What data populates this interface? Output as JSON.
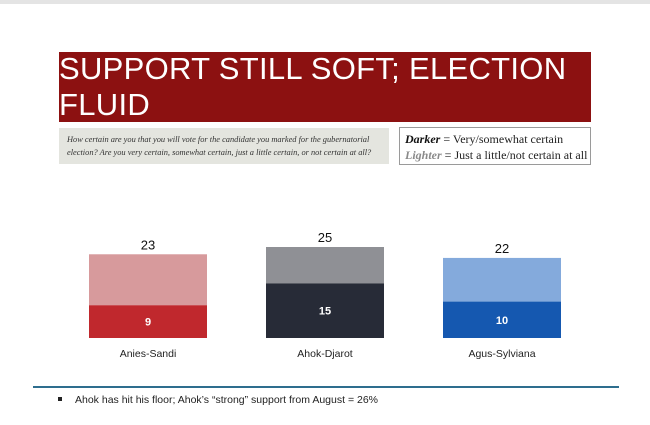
{
  "title": "SUPPORT STILL SOFT; ELECTION FLUID",
  "question": "How certain are you that you will vote for the candidate you marked for the gubernatorial election? Are you very certain, somewhat certain, just a little certain, or not certain at all?",
  "legend": {
    "dark_key": "Darker",
    "dark_text": " = Very/somewhat certain",
    "light_key": "Lighter",
    "light_text": " = Just a little/not certain at all"
  },
  "chart_data": {
    "type": "bar",
    "stacked": true,
    "categories": [
      "Anies-Sandi",
      "Ahok-Djarot",
      "Agus-Sylviana"
    ],
    "totals": [
      23,
      25,
      22
    ],
    "certain_values": [
      9,
      15,
      10
    ],
    "uncertain_values": [
      14,
      10,
      12
    ],
    "colors": {
      "certain": [
        "#c0282d",
        "#272b37",
        "#1558b0"
      ],
      "uncertain": [
        "#d79a9c",
        "#8f9095",
        "#84aadc"
      ]
    },
    "ylim": [
      0,
      25
    ],
    "grid": false
  },
  "footnote": "Ahok has hit his floor; Ahok’s “strong” support from August = 26%"
}
